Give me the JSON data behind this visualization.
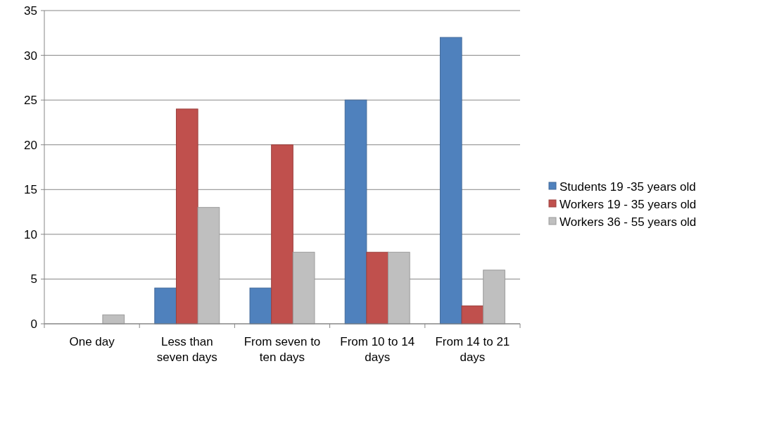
{
  "chart_data": {
    "type": "bar",
    "categories": [
      "One day",
      "Less than seven days",
      "From seven to ten days",
      "From 10 to 14 days",
      "From 14 to 21 days"
    ],
    "series": [
      {
        "name": "Students 19 -35 years old",
        "color": "#4f81bd",
        "values": [
          0,
          4,
          4,
          25,
          32
        ]
      },
      {
        "name": "Workers 19 - 35 years old",
        "color": "#c0504d",
        "values": [
          0,
          24,
          20,
          8,
          2
        ]
      },
      {
        "name": "Workers 36 - 55 years old",
        "color": "#bfbfbf",
        "values": [
          1,
          13,
          8,
          8,
          6
        ]
      }
    ],
    "ylim": [
      0,
      35
    ],
    "yticks": [
      0,
      5,
      10,
      15,
      20,
      25,
      30,
      35
    ],
    "grid": "y",
    "legend": "right"
  }
}
